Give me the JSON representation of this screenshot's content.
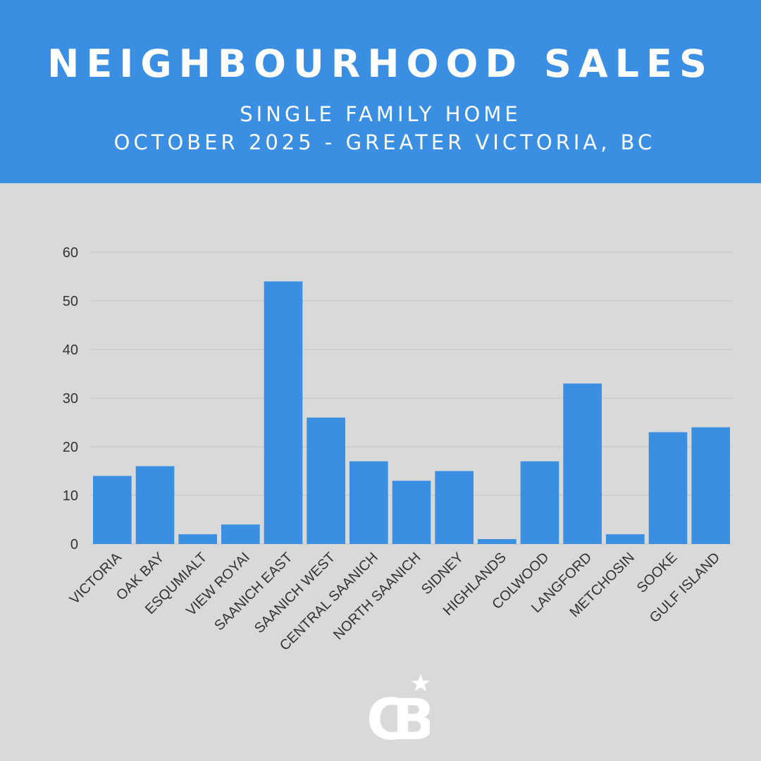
{
  "header": {
    "title": "NEIGHBOURHOOD SALES",
    "subtitle_line1": "SINGLE FAMILY HOME",
    "subtitle_line2": "OCTOBER 2025 - GREATER VICTORIA, BC"
  },
  "colors": {
    "header_bg": "#3a8fe3",
    "bar": "#3a8fe3",
    "background": "#d9d9d9",
    "grid": "#c4c4c4",
    "text": "#333333"
  },
  "logo": {
    "icon": "coldwell-banker-cb-logo-icon",
    "text": "CB"
  },
  "chart_data": {
    "type": "bar",
    "categories": [
      "VICTORIA",
      "OAK BAY",
      "ESQUMIALT",
      "VIEW ROYAI",
      "SAANICH EAST",
      "SAANICH WEST",
      "CENTRAL SAANICH",
      "NORTH SAANICH",
      "SIDNEY",
      "HIGHLANDS",
      "COLWOOD",
      "LANGFORD",
      "METCHOSIN",
      "SOOKE",
      "GULF ISLAND"
    ],
    "values": [
      14,
      16,
      2,
      4,
      54,
      26,
      17,
      13,
      15,
      1,
      17,
      33,
      2,
      23,
      24
    ],
    "ylim": [
      0,
      60
    ],
    "yticks": [
      0,
      10,
      20,
      30,
      40,
      50,
      60
    ],
    "grid": true,
    "legend": "none"
  }
}
